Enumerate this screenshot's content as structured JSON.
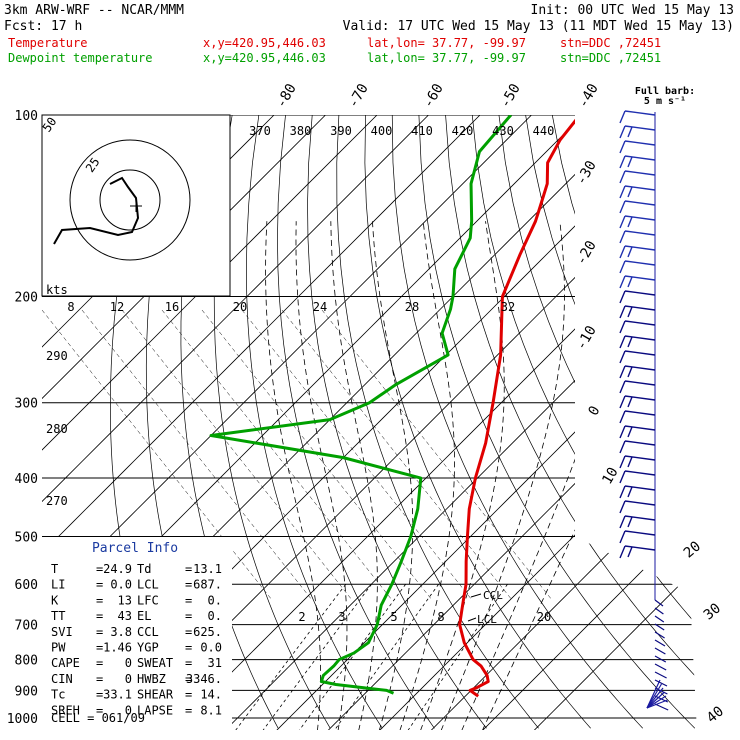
{
  "header": {
    "model": "3km ARW-WRF -- NCAR/MMM",
    "init": "Init: 00 UTC Wed 15 May 13",
    "fcst": "Fcst:    17 h",
    "valid": "Valid: 17 UTC Wed 15 May 13 (11 MDT Wed 15 May 13)",
    "temp_legend": {
      "name": "Temperature",
      "xy": "x,y=420.95,446.03",
      "latlon": "lat,lon= 37.77, -99.97",
      "stn": "stn=DDC ,72451",
      "color": "#e00000"
    },
    "dew_legend": {
      "name": "Dewpoint temperature",
      "xy": "x,y=420.95,446.03",
      "latlon": "lat,lon= 37.77, -99.97",
      "stn": "stn=DDC ,72451",
      "color": "#00a000"
    }
  },
  "barb_legend": {
    "line1": "Full barb:",
    "line2": "5 m s⁻¹"
  },
  "chart_data": {
    "type": "line",
    "y_axis": {
      "scale": "log",
      "unit": "hPa",
      "ticks": [
        100,
        200,
        300,
        400,
        500,
        600,
        700,
        800,
        900,
        1000
      ],
      "range": [
        1000,
        100
      ]
    },
    "isotherm_labels": [
      "-80",
      "-70",
      "-60",
      "-50",
      "-40",
      "-30",
      "-20",
      "-10",
      "0",
      "10",
      "20",
      "30",
      "40"
    ],
    "theta_labels": [
      "370",
      "380",
      "390",
      "400",
      "410",
      "420",
      "430",
      "440"
    ],
    "theta_left_labels": [
      "290",
      "280",
      "270"
    ],
    "mixing_ratio_labels": [
      "2",
      "3",
      "5",
      "8",
      "20"
    ],
    "hodograph": {
      "unit_label": "kts",
      "speed_labels": [
        "8",
        "12",
        "16",
        "20",
        "24",
        "28",
        "32"
      ],
      "ring_labels": [
        "50",
        "25"
      ]
    },
    "annotations": [
      "CCL",
      "LCL"
    ],
    "series": [
      {
        "name": "Temperature",
        "color": "#e00000",
        "points": [
          [
            920,
            32.5
          ],
          [
            900,
            29.8
          ],
          [
            890,
            30.6
          ],
          [
            870,
            31.6
          ],
          [
            850,
            30.2
          ],
          [
            820,
            27.2
          ],
          [
            800,
            24.4
          ],
          [
            750,
            19.4
          ],
          [
            700,
            15.0
          ],
          [
            650,
            11.8
          ],
          [
            600,
            8.4
          ],
          [
            550,
            4.0
          ],
          [
            500,
            -0.6
          ],
          [
            450,
            -5.6
          ],
          [
            400,
            -10.4
          ],
          [
            350,
            -15.2
          ],
          [
            300,
            -21.6
          ],
          [
            250,
            -29.4
          ],
          [
            210,
            -38.0
          ],
          [
            200,
            -40.4
          ],
          [
            170,
            -45.2
          ],
          [
            150,
            -48.6
          ],
          [
            140,
            -51.0
          ],
          [
            130,
            -53.6
          ],
          [
            120,
            -57.6
          ],
          [
            110,
            -59.6
          ],
          [
            100,
            -60.6
          ]
        ]
      },
      {
        "name": "Dewpoint temperature",
        "color": "#00a000",
        "points": [
          [
            910,
            15.5
          ],
          [
            900,
            13.6
          ],
          [
            880,
            2.6
          ],
          [
            870,
            -0.8
          ],
          [
            850,
            -1.6
          ],
          [
            820,
            -1.4
          ],
          [
            800,
            -1.6
          ],
          [
            780,
            0.0
          ],
          [
            750,
            0.8
          ],
          [
            700,
            -1.0
          ],
          [
            650,
            -4.0
          ],
          [
            600,
            -6.0
          ],
          [
            550,
            -8.6
          ],
          [
            500,
            -11.6
          ],
          [
            450,
            -15.6
          ],
          [
            400,
            -21.0
          ],
          [
            370,
            -40.0
          ],
          [
            340,
            -70.0
          ],
          [
            320,
            -50.0
          ],
          [
            300,
            -45.6
          ],
          [
            280,
            -44.0
          ],
          [
            250,
            -39.6
          ],
          [
            230,
            -45.0
          ],
          [
            210,
            -48.0
          ],
          [
            200,
            -50.0
          ],
          [
            180,
            -55.0
          ],
          [
            160,
            -58.0
          ],
          [
            150,
            -61.0
          ],
          [
            130,
            -68.4
          ],
          [
            115,
            -73.0
          ],
          [
            100,
            -74.0
          ]
        ]
      }
    ]
  },
  "parcel_info": {
    "title": "Parcel Info",
    "rows": [
      [
        {
          "k": "T",
          "v": "24.9"
        },
        {
          "k": "Td",
          "v": "13.1"
        }
      ],
      [
        {
          "k": "LI",
          "v": "0.0"
        },
        {
          "k": "LCL",
          "v": "687."
        }
      ],
      [
        {
          "k": "K",
          "v": "13"
        },
        {
          "k": "LFC",
          "v": "0."
        }
      ],
      [
        {
          "k": "TT",
          "v": "43"
        },
        {
          "k": "EL",
          "v": "0."
        }
      ],
      [
        {
          "k": "SVI",
          "v": "3.8"
        },
        {
          "k": "CCL",
          "v": "625."
        }
      ],
      [
        {
          "k": "PW",
          "v": "1.46"
        },
        {
          "k": "YGP",
          "v": "0.0"
        }
      ],
      [
        {
          "k": "CAPE",
          "v": "0"
        },
        {
          "k": "SWEAT",
          "v": "31"
        }
      ],
      [
        {
          "k": "CIN",
          "v": "0"
        },
        {
          "k": "HWBZ",
          "v": "3346."
        }
      ],
      [
        {
          "k": "Tc",
          "v": "33.1"
        },
        {
          "k": "SHEAR",
          "v": "14."
        }
      ],
      [
        {
          "k": "SREH",
          "v": "0"
        },
        {
          "k": "LAPSE",
          "v": "8.1"
        }
      ]
    ],
    "cell": "CELL = 061/09"
  }
}
